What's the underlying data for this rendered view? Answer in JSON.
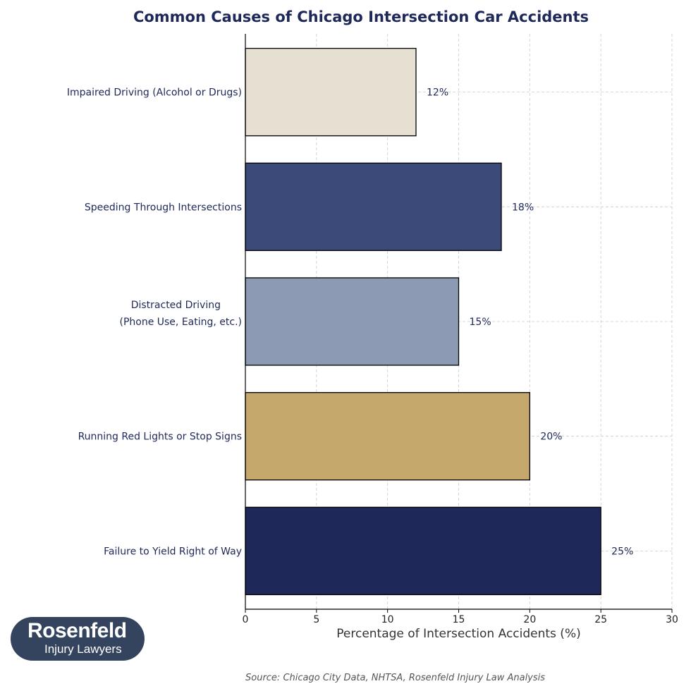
{
  "chart_data": {
    "type": "bar",
    "orientation": "horizontal",
    "title": "Common Causes of Chicago Intersection Car Accidents",
    "xlabel": "Percentage of Intersection Accidents (%)",
    "ylabel": "",
    "categories": [
      "Failure to Yield Right of Way",
      "Running Red Lights or Stop Signs",
      "Distracted Driving\n(Phone Use, Eating, etc.)",
      "Speeding Through Intersections",
      "Impaired Driving (Alcohol or Drugs)"
    ],
    "values": [
      25,
      20,
      15,
      18,
      12
    ],
    "data_labels": [
      "25%",
      "20%",
      "15%",
      "18%",
      "12%"
    ],
    "colors": [
      "#1e2859",
      "#c4a86c",
      "#8c9bb3",
      "#3b4a78",
      "#e6e0d3"
    ],
    "xlim": [
      0,
      30
    ],
    "xticks": [
      0,
      5,
      10,
      15,
      20,
      25,
      30
    ],
    "grid": true,
    "source": "Source: Chicago City Data, NHTSA, Rosenfeld Injury Law Analysis"
  },
  "logo": {
    "line1": "Rosenfeld",
    "line2": "Injury Lawyers"
  }
}
